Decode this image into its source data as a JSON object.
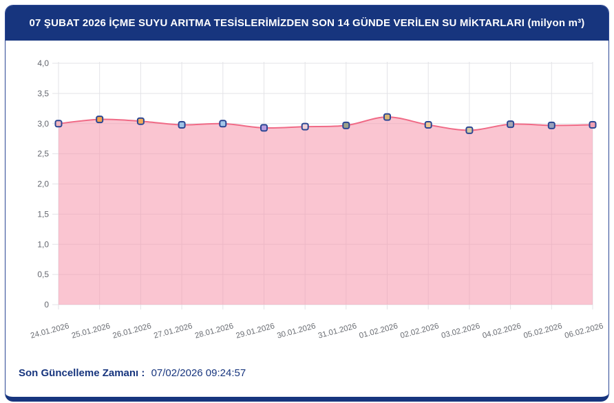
{
  "header": {
    "title": "07 ŞUBAT 2026 İÇME SUYU ARITMA TESİSLERİMİZDEN SON 14 GÜNDE VERİLEN SU MİKTARLARI (milyon m³)"
  },
  "footer": {
    "label": "Son Güncelleme Zamanı :",
    "value": "07/02/2026 09:24:57"
  },
  "colors": {
    "navy": "#17357E",
    "grid": "#E3E3E7",
    "tick_text": "#63666E",
    "line": "#F06A86",
    "area_fill": "rgba(246,150,172,0.55)",
    "marker_border": "#2B4693"
  },
  "chart_data": {
    "type": "area",
    "title": "07 ŞUBAT 2026 İÇME SUYU ARITMA TESİSLERİMİZDEN SON 14 GÜNDE VERİLEN SU MİKTARLARI (milyon m³)",
    "xlabel": "",
    "ylabel": "milyon m³",
    "grid": true,
    "legend": "none",
    "ylim": [
      0,
      4
    ],
    "yticks": [
      0,
      0.5,
      1.0,
      1.5,
      2.0,
      2.5,
      3.0,
      3.5,
      4.0
    ],
    "ytick_labels": [
      "0",
      "0,5",
      "1,0",
      "1,5",
      "2,0",
      "2,5",
      "3,0",
      "3,5",
      "4,0"
    ],
    "categories": [
      "24.01.2026",
      "25.01.2026",
      "26.01.2026",
      "27.01.2026",
      "28.01.2026",
      "29.01.2026",
      "30.01.2026",
      "31.01.2026",
      "01.02.2026",
      "02.02.2026",
      "03.02.2026",
      "04.02.2026",
      "05.02.2026",
      "06.02.2026"
    ],
    "values": [
      3.0,
      3.07,
      3.04,
      2.98,
      3.0,
      2.93,
      2.95,
      2.97,
      3.11,
      2.98,
      2.89,
      2.99,
      2.97,
      2.98
    ],
    "marker_colors": [
      "#F2B6C0",
      "#F4A44E",
      "#F3AC5C",
      "#9EC3E6",
      "#A3C7E9",
      "#B79CDF",
      "#EFD2D8",
      "#9CA288",
      "#D8B675",
      "#EDC795",
      "#D5C8A0",
      "#A7A7B2",
      "#98A1BC",
      "#F1A0B2"
    ]
  }
}
